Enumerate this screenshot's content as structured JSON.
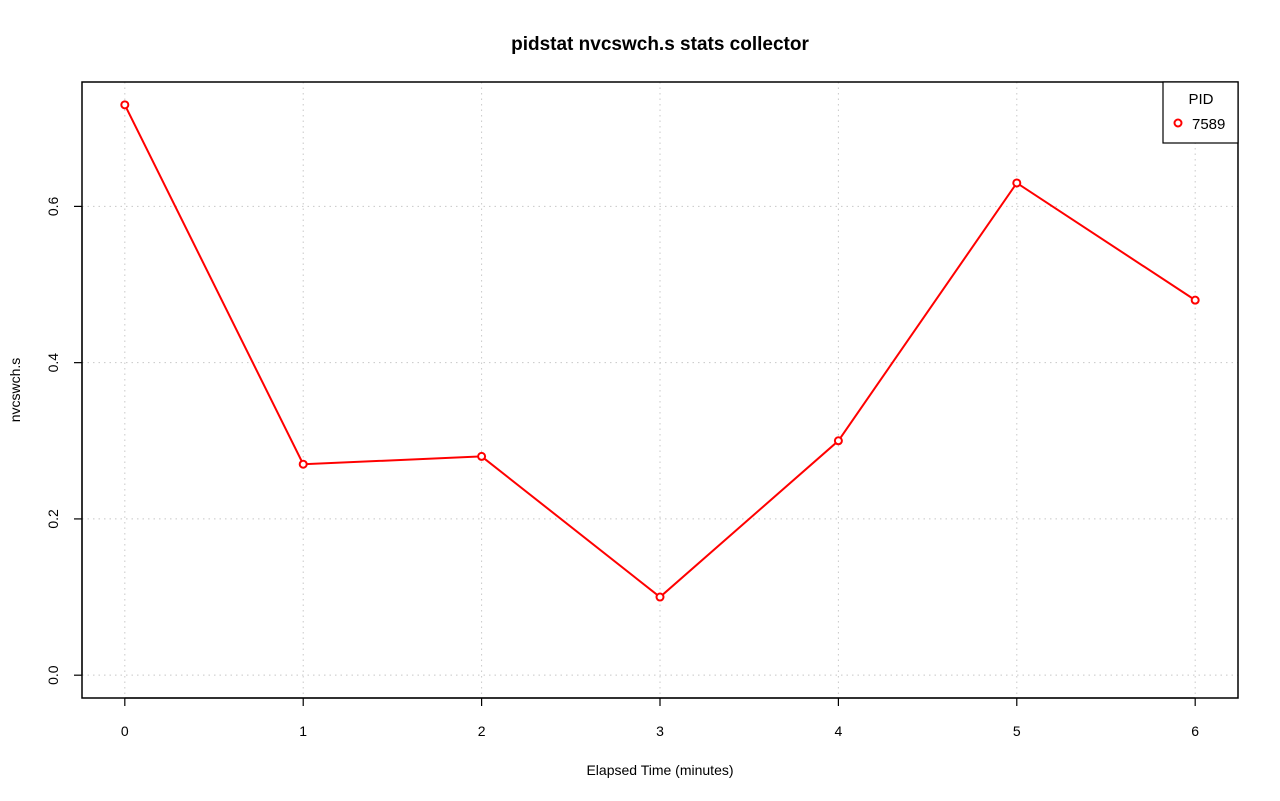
{
  "chart_data": {
    "type": "line",
    "title": "pidstat nvcswch.s stats collector",
    "xlabel": "Elapsed Time (minutes)",
    "ylabel": "nvcswch.s",
    "xlim": [
      -0.24,
      6.24
    ],
    "ylim": [
      -0.0292,
      0.7592
    ],
    "x_ticks": [
      0,
      1,
      2,
      3,
      4,
      5,
      6
    ],
    "y_ticks": [
      0.0,
      0.2,
      0.4,
      0.6
    ],
    "y_tick_labels": [
      "0.0",
      "0.2",
      "0.4",
      "0.6"
    ],
    "grid": true,
    "legend": {
      "title": "PID",
      "placement": "top-right"
    },
    "series": [
      {
        "name": "7589",
        "color": "#ff0000",
        "marker": "open-circle",
        "x": [
          0,
          1,
          2,
          3,
          4,
          5,
          6
        ],
        "y": [
          0.73,
          0.27,
          0.28,
          0.1,
          0.3,
          0.63,
          0.48
        ]
      }
    ]
  }
}
